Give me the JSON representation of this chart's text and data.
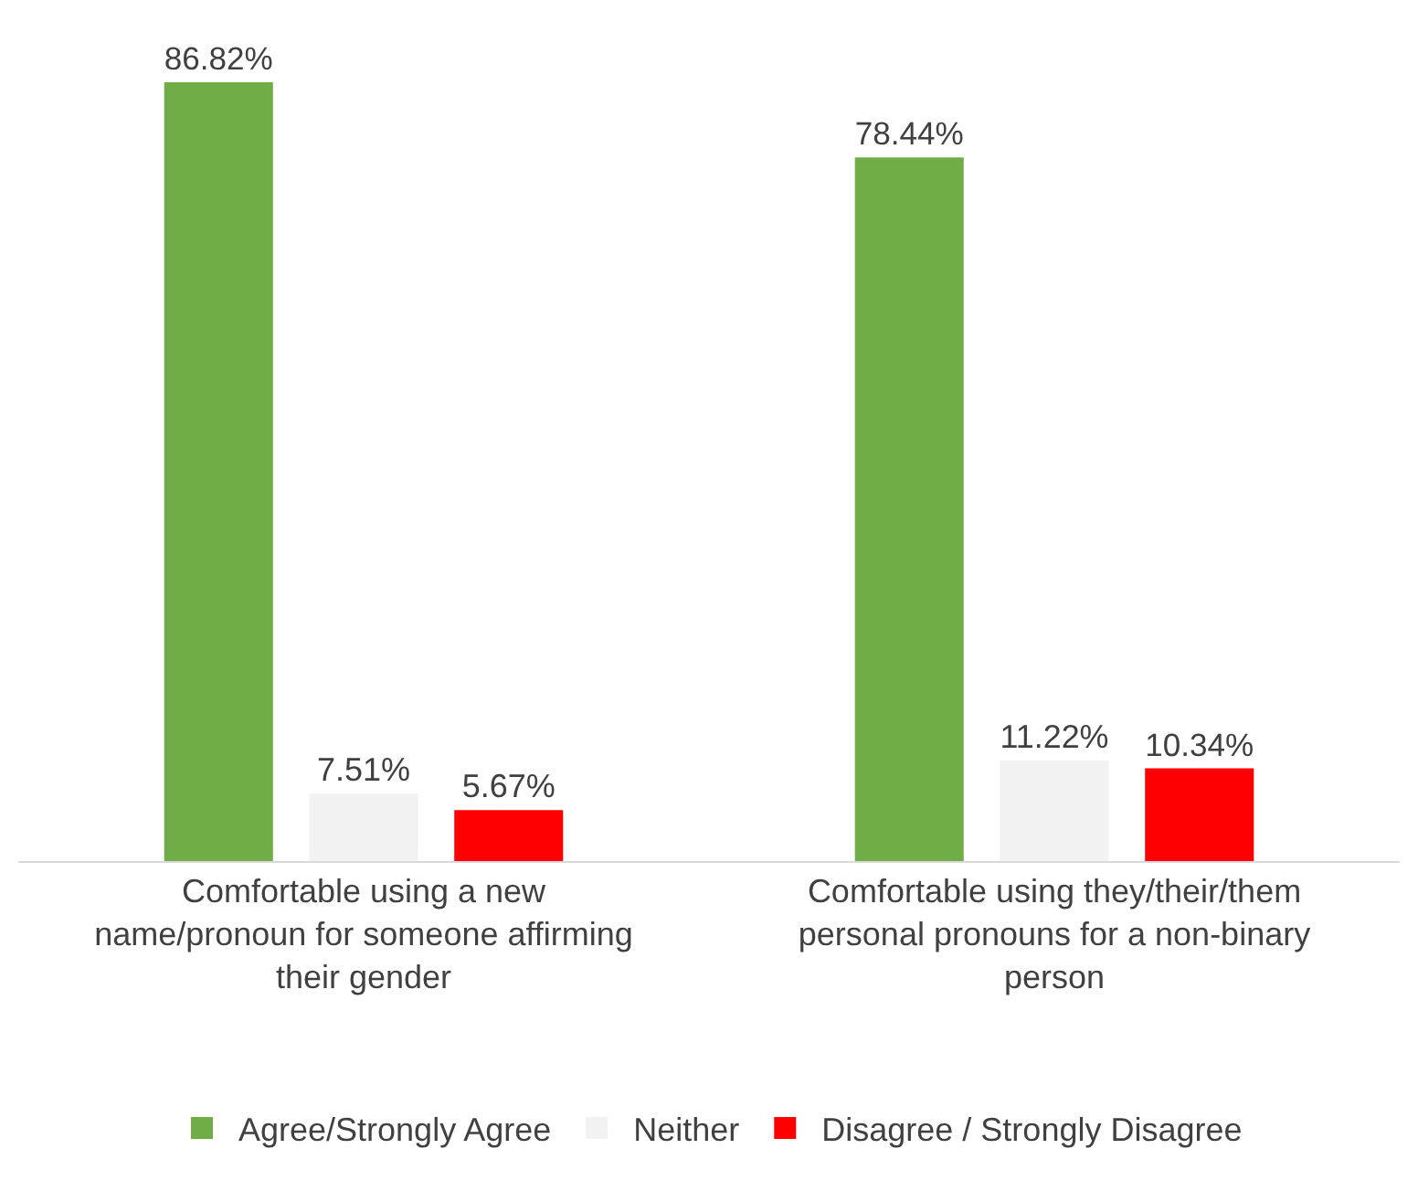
{
  "chart_data": {
    "type": "bar",
    "categories": [
      "Comfortable using a new name/pronoun for someone affirming their gender",
      "Comfortable using they/their/them personal pronouns for a non-binary person"
    ],
    "series": [
      {
        "name": "Agree/Strongly Agree",
        "color": "#70ad47",
        "values": [
          86.82,
          78.44
        ],
        "value_labels": [
          "86.82%",
          "78.44%"
        ]
      },
      {
        "name": "Neither",
        "color": "#f2f2f2",
        "values": [
          7.51,
          11.22
        ],
        "value_labels": [
          "7.51%",
          "11.22%"
        ]
      },
      {
        "name": "Disagree / Strongly Disagree",
        "color": "#ff0000",
        "values": [
          5.67,
          10.34
        ],
        "value_labels": [
          "5.67%",
          "10.34%"
        ]
      }
    ],
    "legend": "bottom"
  }
}
